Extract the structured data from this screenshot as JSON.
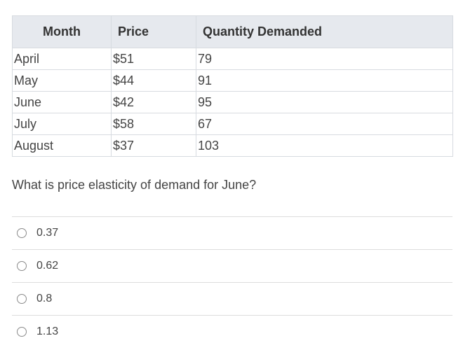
{
  "table": {
    "headers": [
      "Month",
      "Price",
      "Quantity Demanded"
    ],
    "rows": [
      [
        "April",
        "$51",
        "79"
      ],
      [
        "May",
        "$44",
        "91"
      ],
      [
        "June",
        "$42",
        "95"
      ],
      [
        "July",
        "$58",
        "67"
      ],
      [
        "August",
        "$37",
        "103"
      ]
    ]
  },
  "question": "What is price elasticity of demand for June?",
  "options": [
    "0.37",
    "0.62",
    "0.8",
    "1.13"
  ]
}
